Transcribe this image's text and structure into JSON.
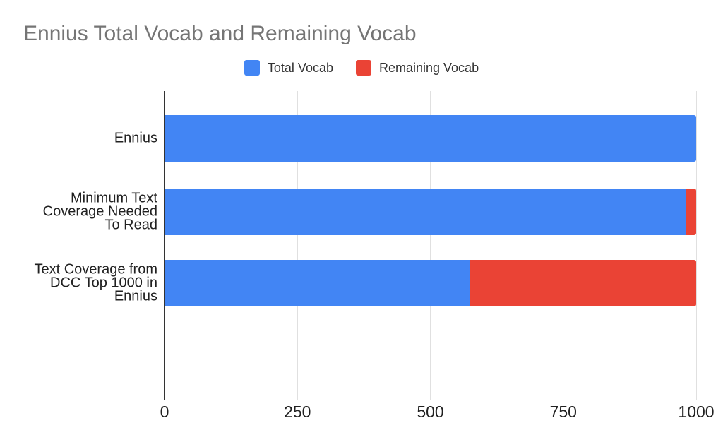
{
  "chart_data": {
    "type": "bar",
    "orientation": "horizontal",
    "stacked": true,
    "title": "Ennius Total Vocab and Remaining Vocab",
    "categories": [
      "Ennius",
      "Minimum Text Coverage Needed To Read",
      "Text Coverage from DCC Top 1000 in Ennius"
    ],
    "categories_lines": [
      [
        "Ennius"
      ],
      [
        "Minimum Text",
        "Coverage Needed",
        "To Read"
      ],
      [
        "Text Coverage from",
        "DCC Top 1000 in",
        "Ennius"
      ]
    ],
    "series": [
      {
        "name": "Total Vocab",
        "color": "#4285F4",
        "values": [
          1000,
          980,
          574
        ]
      },
      {
        "name": "Remaining Vocab",
        "color": "#EA4335",
        "values": [
          0,
          20,
          426
        ]
      }
    ],
    "xlabel": "",
    "ylabel": "",
    "xlim": [
      0,
      1000
    ],
    "x_ticks": [
      {
        "value": 0,
        "label": "0"
      },
      {
        "value": 250,
        "label": "250"
      },
      {
        "value": 500,
        "label": "500"
      },
      {
        "value": 750,
        "label": "750"
      },
      {
        "value": 1000,
        "label": "1000"
      }
    ],
    "grid": true,
    "legend_position": "top",
    "colors": {
      "title_text": "#757575",
      "axis_text": "#212121",
      "category_text": "#212121",
      "legend_text": "#333333",
      "gridline": "#e0e0e0",
      "baseline": "#333333",
      "background": "#ffffff"
    }
  }
}
